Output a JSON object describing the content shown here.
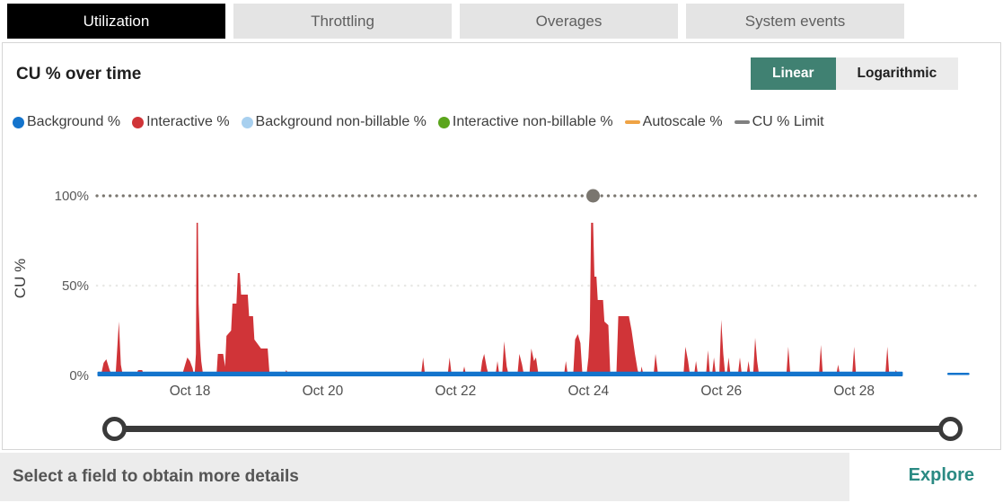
{
  "tabs": [
    {
      "label": "Utilization",
      "selected": true
    },
    {
      "label": "Throttling",
      "selected": false
    },
    {
      "label": "Overages",
      "selected": false
    },
    {
      "label": "System events",
      "selected": false
    }
  ],
  "panel": {
    "title": "CU % over time",
    "scale_toggle": {
      "accent_color": "#408172",
      "options": [
        {
          "label": "Linear",
          "selected": true
        },
        {
          "label": "Logarithmic",
          "selected": false
        }
      ]
    },
    "legend": [
      {
        "label": "Background %",
        "color": "#1474cc",
        "marker": "circle"
      },
      {
        "label": "Interactive %",
        "color": "#d03438",
        "marker": "circle"
      },
      {
        "label": "Background non-billable %",
        "color": "#a8d0ef",
        "marker": "circle"
      },
      {
        "label": "Interactive non-billable %",
        "color": "#5ba51c",
        "marker": "circle"
      },
      {
        "label": "Autoscale %",
        "color": "#efa345",
        "marker": "line"
      },
      {
        "label": "CU % Limit",
        "color": "#808080",
        "marker": "line"
      }
    ]
  },
  "chart_data": {
    "type": "area",
    "title": "CU % over time",
    "xlabel": "",
    "ylabel": "CU %",
    "x_range_days": [
      16.6,
      29.85
    ],
    "ylim": [
      0,
      105
    ],
    "grid": "dotted-50-and-100",
    "x_ticks": [
      {
        "label": "Oct 18",
        "day": 18
      },
      {
        "label": "Oct 20",
        "day": 20
      },
      {
        "label": "Oct 22",
        "day": 22
      },
      {
        "label": "Oct 24",
        "day": 24
      },
      {
        "label": "Oct 26",
        "day": 26
      },
      {
        "label": "Oct 28",
        "day": 28
      }
    ],
    "y_ticks": [
      {
        "label": "100%",
        "value": 100
      },
      {
        "label": "50%",
        "value": 50
      },
      {
        "label": "0%",
        "value": 0
      }
    ],
    "limit_line": {
      "name": "CU % Limit",
      "value": 100,
      "marker_day": 24.07,
      "color": "#7a766f"
    },
    "series": [
      {
        "name": "Interactive %",
        "color": "#d03438",
        "mode": "area",
        "points": [
          [
            16.62,
            0
          ],
          [
            16.66,
            0
          ],
          [
            16.7,
            7
          ],
          [
            16.74,
            9
          ],
          [
            16.79,
            3
          ],
          [
            16.83,
            0
          ],
          [
            16.88,
            0
          ],
          [
            16.9,
            12
          ],
          [
            16.93,
            30
          ],
          [
            16.96,
            6
          ],
          [
            16.99,
            0
          ],
          [
            17.18,
            0
          ],
          [
            17.22,
            3
          ],
          [
            17.28,
            3
          ],
          [
            17.31,
            0
          ],
          [
            17.72,
            0
          ],
          [
            17.76,
            2
          ],
          [
            17.8,
            0
          ],
          [
            17.88,
            0
          ],
          [
            17.92,
            5
          ],
          [
            17.96,
            10
          ],
          [
            18.0,
            8
          ],
          [
            18.04,
            4
          ],
          [
            18.06,
            0
          ],
          [
            18.07,
            0
          ],
          [
            18.09,
            12
          ],
          [
            18.1,
            85
          ],
          [
            18.12,
            85
          ],
          [
            18.13,
            40
          ],
          [
            18.15,
            20
          ],
          [
            18.17,
            8
          ],
          [
            18.2,
            0
          ],
          [
            18.4,
            0
          ],
          [
            18.42,
            12
          ],
          [
            18.5,
            12
          ],
          [
            18.53,
            5
          ],
          [
            18.55,
            22
          ],
          [
            18.62,
            25
          ],
          [
            18.64,
            40
          ],
          [
            18.7,
            40
          ],
          [
            18.72,
            57
          ],
          [
            18.75,
            57
          ],
          [
            18.77,
            45
          ],
          [
            18.87,
            45
          ],
          [
            18.89,
            33
          ],
          [
            18.95,
            33
          ],
          [
            18.97,
            20
          ],
          [
            19.05,
            16
          ],
          [
            19.07,
            15
          ],
          [
            19.17,
            15
          ],
          [
            19.2,
            0
          ],
          [
            19.42,
            0
          ],
          [
            19.45,
            3
          ],
          [
            19.49,
            0
          ],
          [
            21.48,
            0
          ],
          [
            21.51,
            10
          ],
          [
            21.54,
            0
          ],
          [
            21.88,
            0
          ],
          [
            21.91,
            10
          ],
          [
            21.94,
            0
          ],
          [
            22.1,
            0
          ],
          [
            22.13,
            5
          ],
          [
            22.16,
            0
          ],
          [
            22.37,
            0
          ],
          [
            22.4,
            8
          ],
          [
            22.43,
            12
          ],
          [
            22.47,
            4
          ],
          [
            22.5,
            0
          ],
          [
            22.6,
            0
          ],
          [
            22.63,
            8
          ],
          [
            22.66,
            0
          ],
          [
            22.7,
            0
          ],
          [
            22.73,
            19
          ],
          [
            22.77,
            5
          ],
          [
            22.8,
            0
          ],
          [
            22.93,
            0
          ],
          [
            22.96,
            12
          ],
          [
            23.0,
            6
          ],
          [
            23.03,
            0
          ],
          [
            23.11,
            0
          ],
          [
            23.14,
            15
          ],
          [
            23.18,
            8
          ],
          [
            23.21,
            10
          ],
          [
            23.25,
            0
          ],
          [
            23.63,
            0
          ],
          [
            23.66,
            8
          ],
          [
            23.69,
            0
          ],
          [
            23.77,
            0
          ],
          [
            23.8,
            20
          ],
          [
            23.84,
            23
          ],
          [
            23.88,
            18
          ],
          [
            23.91,
            0
          ],
          [
            23.97,
            0
          ],
          [
            24.0,
            10
          ],
          [
            24.02,
            25
          ],
          [
            24.04,
            85
          ],
          [
            24.07,
            85
          ],
          [
            24.09,
            55
          ],
          [
            24.12,
            55
          ],
          [
            24.14,
            42
          ],
          [
            24.22,
            42
          ],
          [
            24.24,
            30
          ],
          [
            24.3,
            28
          ],
          [
            24.33,
            0
          ],
          [
            24.42,
            0
          ],
          [
            24.45,
            33
          ],
          [
            24.61,
            33
          ],
          [
            24.65,
            25
          ],
          [
            24.7,
            12
          ],
          [
            24.74,
            3
          ],
          [
            24.77,
            0
          ],
          [
            24.78,
            0
          ],
          [
            24.8,
            5
          ],
          [
            24.83,
            0
          ],
          [
            24.98,
            0
          ],
          [
            25.01,
            12
          ],
          [
            25.05,
            0
          ],
          [
            25.43,
            0
          ],
          [
            25.46,
            16
          ],
          [
            25.5,
            8
          ],
          [
            25.53,
            0
          ],
          [
            25.59,
            0
          ],
          [
            25.62,
            8
          ],
          [
            25.65,
            0
          ],
          [
            25.77,
            0
          ],
          [
            25.8,
            14
          ],
          [
            25.83,
            0
          ],
          [
            25.86,
            0
          ],
          [
            25.89,
            10
          ],
          [
            25.92,
            0
          ],
          [
            25.97,
            0
          ],
          [
            26.0,
            31
          ],
          [
            26.03,
            12
          ],
          [
            26.06,
            0
          ],
          [
            26.08,
            0
          ],
          [
            26.11,
            10
          ],
          [
            26.14,
            0
          ],
          [
            26.25,
            0
          ],
          [
            26.28,
            10
          ],
          [
            26.31,
            0
          ],
          [
            26.38,
            0
          ],
          [
            26.41,
            8
          ],
          [
            26.44,
            0
          ],
          [
            26.48,
            0
          ],
          [
            26.51,
            21
          ],
          [
            26.54,
            8
          ],
          [
            26.57,
            0
          ],
          [
            26.98,
            0
          ],
          [
            27.01,
            16
          ],
          [
            27.04,
            0
          ],
          [
            27.47,
            0
          ],
          [
            27.5,
            17
          ],
          [
            27.53,
            0
          ],
          [
            27.73,
            0
          ],
          [
            27.76,
            6
          ],
          [
            27.79,
            0
          ],
          [
            27.97,
            0
          ],
          [
            28.0,
            16
          ],
          [
            28.03,
            0
          ],
          [
            28.47,
            0
          ],
          [
            28.5,
            16
          ],
          [
            28.53,
            0
          ],
          [
            28.6,
            0
          ],
          [
            28.63,
            3
          ],
          [
            28.66,
            0
          ],
          [
            28.7,
            0
          ]
        ]
      },
      {
        "name": "Background %",
        "color": "#1474cc",
        "mode": "area",
        "stroke": true,
        "stroke_width": 2,
        "points": [
          [
            16.62,
            1.6
          ],
          [
            28.72,
            1.6
          ]
        ]
      },
      {
        "name": "Background %",
        "color": "#1474cc",
        "mode": "line",
        "stroke_width": 2.5,
        "points": [
          [
            29.42,
            0.9
          ],
          [
            29.72,
            0.9
          ]
        ]
      }
    ]
  },
  "bottom_bar": {
    "message": "Select a field to obtain more details",
    "action": "Explore",
    "action_color": "#2a8a83"
  }
}
